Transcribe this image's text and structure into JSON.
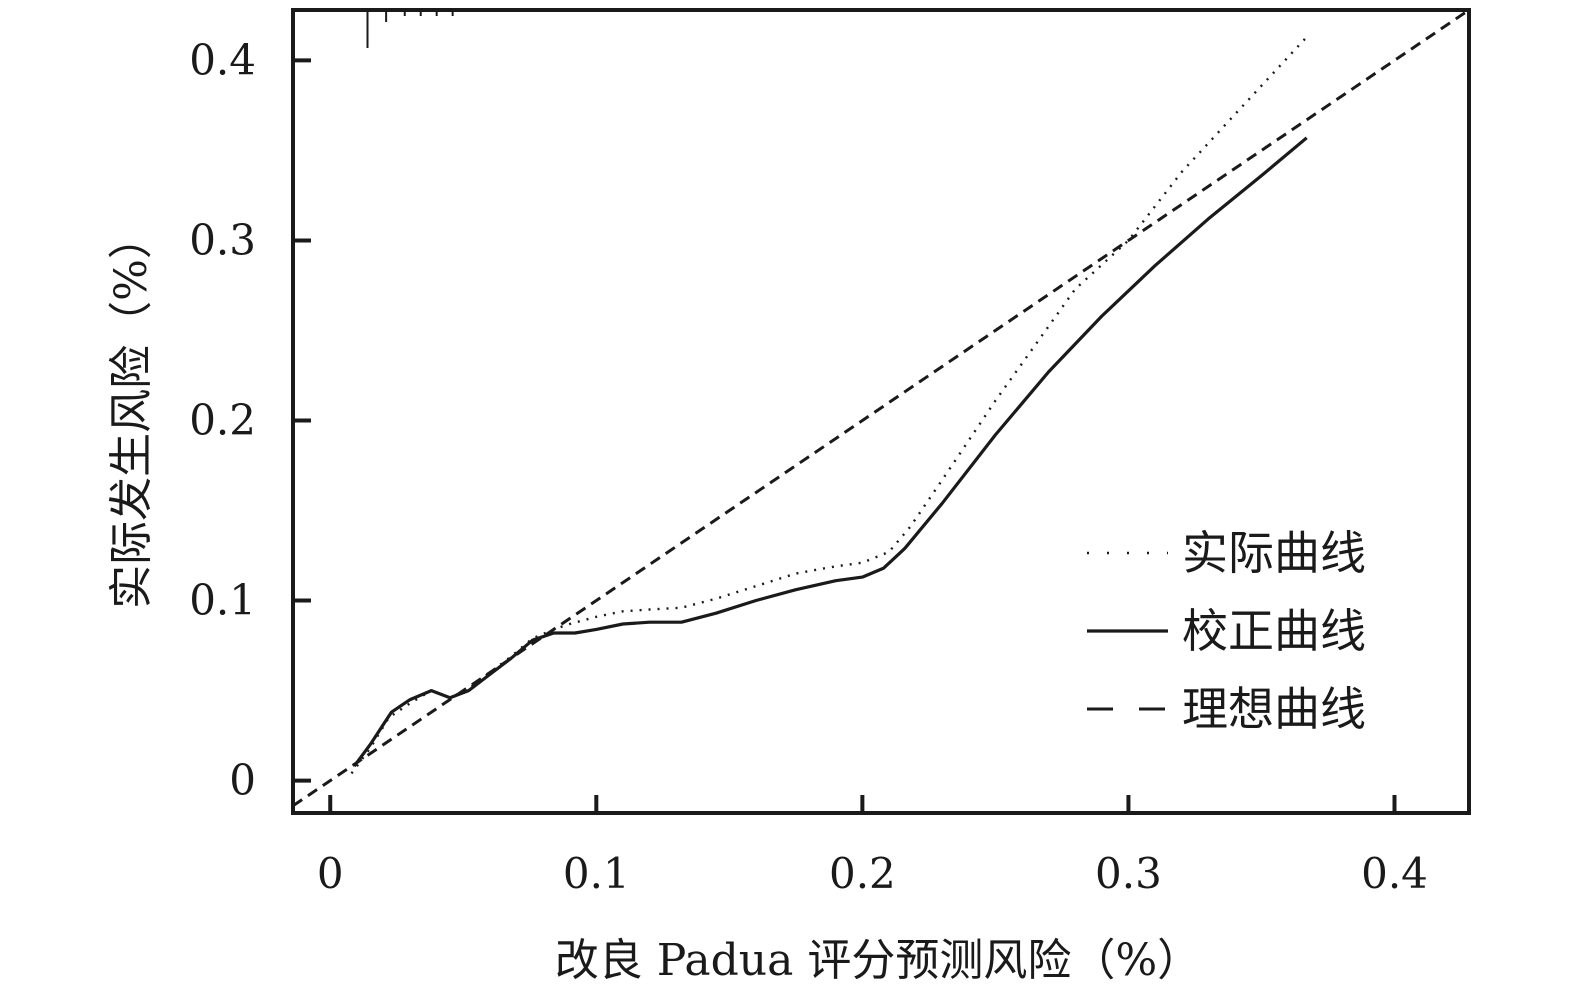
{
  "chart_data": {
    "type": "line",
    "xlabel": "改良 Padua 评分预测风险（%）",
    "ylabel": "实际发生风险（%）",
    "xlim": [
      -0.014,
      0.428
    ],
    "ylim": [
      -0.018,
      0.428
    ],
    "x_ticks": [
      "0",
      "0.1",
      "0.2",
      "0.3",
      "0.4"
    ],
    "y_ticks": [
      "0",
      "0.1",
      "0.2",
      "0.3",
      "0.4"
    ],
    "grid": false,
    "legend_position": "bottom-right",
    "rug_x": [
      0.014,
      0.021,
      0.028,
      0.034,
      0.04,
      0.046
    ],
    "series": [
      {
        "name": "实际曲线",
        "style": "dotted",
        "x": [
          0.008,
          0.015,
          0.022,
          0.03,
          0.038,
          0.045,
          0.052,
          0.06,
          0.068,
          0.076,
          0.084,
          0.09,
          0.1,
          0.11,
          0.12,
          0.132,
          0.145,
          0.16,
          0.175,
          0.19,
          0.2,
          0.21,
          0.218,
          0.23,
          0.25,
          0.28,
          0.3,
          0.32,
          0.34,
          0.367
        ],
        "y": [
          0.004,
          0.018,
          0.035,
          0.043,
          0.05,
          0.046,
          0.051,
          0.06,
          0.069,
          0.079,
          0.084,
          0.087,
          0.091,
          0.094,
          0.095,
          0.096,
          0.101,
          0.108,
          0.115,
          0.119,
          0.121,
          0.127,
          0.141,
          0.167,
          0.211,
          0.273,
          0.3,
          0.338,
          0.37,
          0.413
        ]
      },
      {
        "name": "校正曲线",
        "style": "solid",
        "x": [
          0.009,
          0.015,
          0.023,
          0.03,
          0.038,
          0.045,
          0.052,
          0.06,
          0.068,
          0.076,
          0.084,
          0.092,
          0.1,
          0.11,
          0.12,
          0.132,
          0.145,
          0.16,
          0.175,
          0.19,
          0.2,
          0.208,
          0.216,
          0.23,
          0.25,
          0.27,
          0.29,
          0.31,
          0.33,
          0.35,
          0.367
        ],
        "y": [
          0.008,
          0.02,
          0.038,
          0.045,
          0.05,
          0.046,
          0.05,
          0.059,
          0.068,
          0.078,
          0.082,
          0.082,
          0.084,
          0.087,
          0.088,
          0.088,
          0.093,
          0.1,
          0.106,
          0.111,
          0.113,
          0.118,
          0.129,
          0.154,
          0.192,
          0.227,
          0.258,
          0.286,
          0.312,
          0.336,
          0.357
        ]
      },
      {
        "name": "理想曲线",
        "style": "dashed",
        "x": [
          -0.014,
          0.428
        ],
        "y": [
          -0.014,
          0.428
        ]
      }
    ]
  }
}
